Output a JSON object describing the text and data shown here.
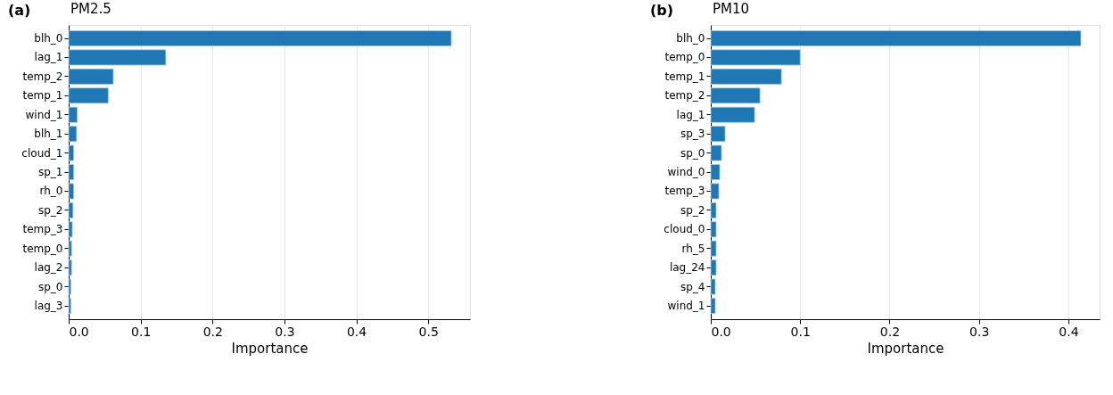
{
  "chart_data": [
    {
      "type": "bar",
      "orientation": "horizontal",
      "title": "PM2.5",
      "annotations": [
        "(a)"
      ],
      "xlabel": "Importance",
      "categories": [
        "blh_0",
        "lag_1",
        "temp_2",
        "temp_1",
        "wind_1",
        "blh_1",
        "cloud_1",
        "sp_1",
        "rh_0",
        "sp_2",
        "temp_3",
        "temp_0",
        "lag_2",
        "sp_0",
        "lag_3"
      ],
      "values": [
        0.532,
        0.135,
        0.062,
        0.055,
        0.012,
        0.011,
        0.007,
        0.007,
        0.007,
        0.006,
        0.005,
        0.004,
        0.004,
        0.003,
        0.003
      ],
      "color": "#1f77b4",
      "xlim": [
        0,
        0.558
      ],
      "xticks": [
        {
          "value": 0,
          "label": "0.0"
        },
        0.1,
        0.2,
        0.3,
        0.4,
        0.5
      ],
      "grid": "x"
    },
    {
      "type": "bar",
      "orientation": "horizontal",
      "title": "PM10",
      "annotations": [
        "(b)"
      ],
      "xlabel": "Importance",
      "categories": [
        "blh_0",
        "temp_0",
        "temp_1",
        "temp_2",
        "lag_1",
        "sp_3",
        "sp_0",
        "wind_0",
        "temp_3",
        "sp_2",
        "cloud_0",
        "rh_5",
        "lag_24",
        "sp_4",
        "wind_1"
      ],
      "values": [
        0.414,
        0.1,
        0.079,
        0.055,
        0.049,
        0.016,
        0.012,
        0.01,
        0.009,
        0.006,
        0.006,
        0.006,
        0.006,
        0.005,
        0.005
      ],
      "color": "#1f77b4",
      "xlim": [
        0,
        0.435
      ],
      "xticks": [
        {
          "value": 0,
          "label": "0.0"
        },
        0.1,
        0.2,
        0.3,
        0.4
      ],
      "grid": "x"
    }
  ]
}
